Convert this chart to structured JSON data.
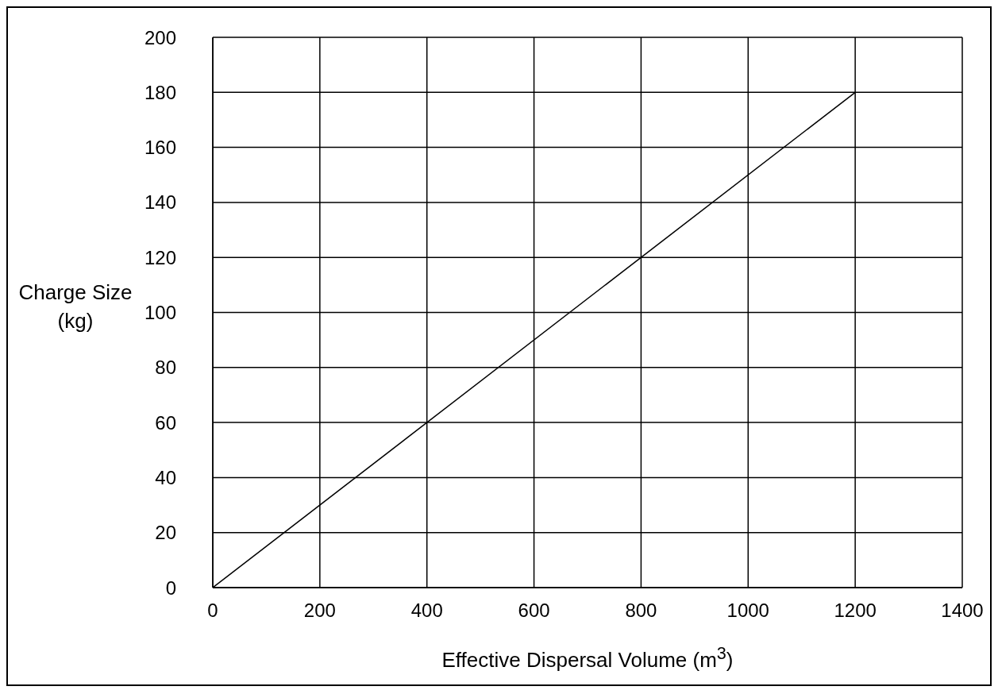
{
  "chart_data": {
    "type": "line",
    "xlabel": "Effective Dispersal Volume (m$^{3}$)",
    "ylabel": "Charge Size (kg)",
    "x": [
      0,
      1200
    ],
    "values": [
      0,
      180
    ],
    "color": "#000000",
    "xlim": [
      0,
      1400
    ],
    "xticks": [
      0,
      200,
      400,
      600,
      800,
      1000,
      1200,
      1400
    ],
    "ylim": [
      0,
      200
    ],
    "yticks": [
      0,
      20,
      40,
      60,
      80,
      100,
      120,
      140,
      160,
      180,
      200
    ],
    "grid": true,
    "marker": "none",
    "line_style": "solid"
  }
}
